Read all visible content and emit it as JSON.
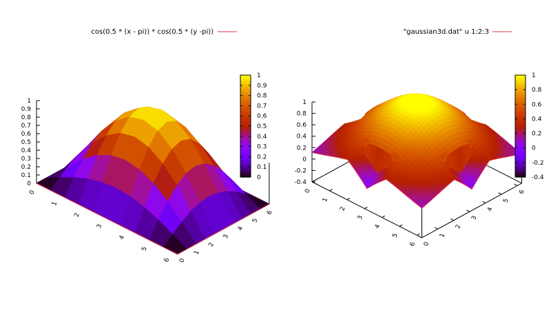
{
  "charts": [
    {
      "legend_label": "cos(0.5 * (x - pi)) * cos(0.5 * (y -pi))",
      "legend_color": "#e0304a"
    },
    {
      "legend_label": "\"gaussian3d.dat\" u 1:2:3",
      "legend_color": "#e0304a"
    }
  ],
  "chart_data": [
    {
      "type": "surface3d",
      "function": "cos(0.5 * (x - pi)) * cos(0.5 * (y -pi))",
      "xlim": [
        0,
        6.28
      ],
      "ylim": [
        0,
        6.28
      ],
      "zlim": [
        0,
        1
      ],
      "x_ticks": [
        "0",
        "1",
        "2",
        "3",
        "4",
        "5",
        "6"
      ],
      "y_ticks": [
        "0",
        "1",
        "2",
        "3",
        "4",
        "5",
        "6"
      ],
      "z_ticks": [
        "0",
        "0.1",
        "0.2",
        "0.3",
        "0.4",
        "0.5",
        "0.6",
        "0.7",
        "0.8",
        "0.9",
        "1"
      ],
      "colorbox_ticks": [
        "0",
        "0.1",
        "0.2",
        "0.3",
        "0.4",
        "0.5",
        "0.6",
        "0.7",
        "0.8",
        "0.9",
        "1"
      ],
      "cbrange": [
        0,
        1
      ],
      "palette": "black-blue-purple-red-orange-yellow",
      "grid_samples": 11,
      "legend_placement": "top"
    },
    {
      "type": "surface3d",
      "source": "gaussian3d.dat",
      "columns": "1:2:3",
      "xlim": [
        0,
        6.28
      ],
      "ylim": [
        0,
        6.28
      ],
      "zlim": [
        -0.4,
        1
      ],
      "x_ticks": [
        "0",
        "1",
        "2",
        "3",
        "4",
        "5",
        "6"
      ],
      "y_ticks": [
        "0",
        "1",
        "2",
        "3",
        "4",
        "5",
        "6"
      ],
      "z_ticks": [
        "-0.4",
        "-0.2",
        "0",
        "0.2",
        "0.4",
        "0.6",
        "0.8",
        "1"
      ],
      "colorbox_ticks": [
        "-0.4",
        "-0.2",
        "0",
        "0.2",
        "0.4",
        "0.6",
        "0.8",
        "1"
      ],
      "cbrange": [
        -0.4,
        1
      ],
      "palette": "black-blue-purple-red-orange-yellow",
      "grid_samples": 41,
      "legend_placement": "top"
    }
  ]
}
